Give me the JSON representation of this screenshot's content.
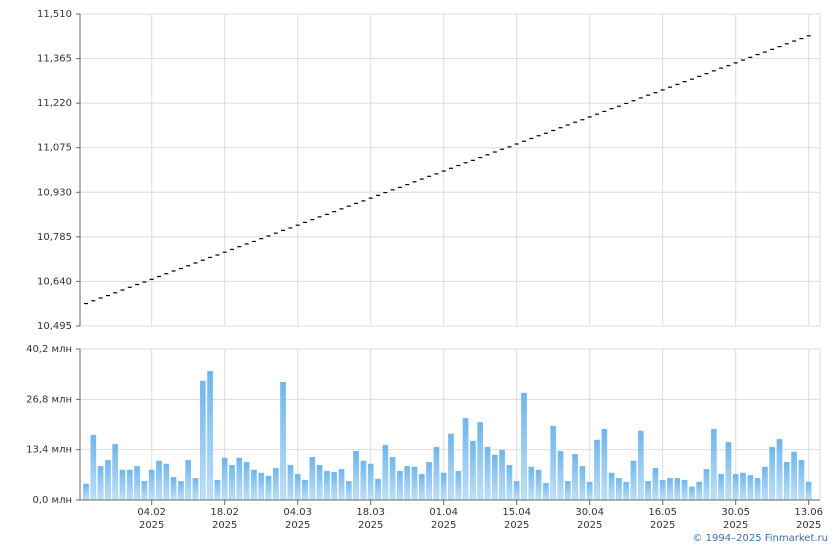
{
  "chart_data": [
    {
      "type": "candlestick",
      "color": "#000000",
      "values": [
        10568,
        10577,
        10586,
        10594,
        10603,
        10612,
        10621,
        10630,
        10638,
        10647,
        10656,
        10665,
        10674,
        10682,
        10691,
        10700,
        10709,
        10718,
        10726,
        10735,
        10744,
        10753,
        10762,
        10770,
        10779,
        10788,
        10797,
        10806,
        10814,
        10823,
        10832,
        10841,
        10850,
        10858,
        10867,
        10876,
        10885,
        10894,
        10902,
        10911,
        10920,
        10929,
        10938,
        10946,
        10955,
        10964,
        10973,
        10982,
        10990,
        10999,
        11008,
        11017,
        11026,
        11034,
        11043,
        11052,
        11061,
        11070,
        11078,
        11087,
        11096,
        11105,
        11114,
        11122,
        11131,
        11140,
        11149,
        11158,
        11166,
        11175,
        11184,
        11193,
        11202,
        11210,
        11219,
        11228,
        11237,
        11246,
        11254,
        11263,
        11272,
        11281,
        11290,
        11298,
        11307,
        11316,
        11325,
        11334,
        11342,
        11351,
        11360,
        11369,
        11378,
        11386,
        11395,
        11404,
        11413,
        11422,
        11430,
        11439
      ],
      "ylim": [
        10495,
        11510
      ],
      "yticks": [
        {
          "value": 10495,
          "label": "10,495"
        },
        {
          "value": 10640,
          "label": "10,640"
        },
        {
          "value": 10785,
          "label": "10,785"
        },
        {
          "value": 10930,
          "label": "10,930"
        },
        {
          "value": 11075,
          "label": "11,075"
        },
        {
          "value": 11220,
          "label": "11,220"
        },
        {
          "value": 11365,
          "label": "11,365"
        },
        {
          "value": 11510,
          "label": "11,510"
        }
      ],
      "grid": true
    },
    {
      "type": "bar",
      "color": "#7cbdee",
      "categories": [
        null,
        null,
        null,
        null,
        null,
        null,
        null,
        null,
        null,
        "04.02\n2025",
        null,
        null,
        null,
        null,
        null,
        null,
        null,
        null,
        null,
        "18.02\n2025",
        null,
        null,
        null,
        null,
        null,
        null,
        null,
        null,
        null,
        "04.03\n2025",
        null,
        null,
        null,
        null,
        null,
        null,
        null,
        null,
        null,
        "18.03\n2025",
        null,
        null,
        null,
        null,
        null,
        null,
        null,
        null,
        null,
        "01.04\n2025",
        null,
        null,
        null,
        null,
        null,
        null,
        null,
        null,
        null,
        "15.04\n2025",
        null,
        null,
        null,
        null,
        null,
        null,
        null,
        null,
        null,
        "30.04\n2025",
        null,
        null,
        null,
        null,
        null,
        null,
        null,
        null,
        null,
        "16.05\n2025",
        null,
        null,
        null,
        null,
        null,
        null,
        null,
        null,
        null,
        "30.05\n2025",
        null,
        null,
        null,
        null,
        null,
        null,
        null,
        null,
        null,
        "13.06\n2025"
      ],
      "values": [
        4.3,
        17.3,
        9,
        10.6,
        14.9,
        8,
        8,
        9,
        5,
        8,
        10.4,
        9.6,
        6.1,
        5,
        10.6,
        5.8,
        31.7,
        34.3,
        5.3,
        11.2,
        9.3,
        11.2,
        10.1,
        8,
        7.2,
        6.4,
        8.5,
        31.4,
        9.3,
        6.9,
        5.3,
        11.4,
        9.3,
        7.7,
        7.4,
        8.2,
        5,
        13,
        10.4,
        9.6,
        5.6,
        14.6,
        11.4,
        7.7,
        9,
        8.8,
        6.9,
        10.1,
        14.1,
        7.2,
        17.6,
        7.7,
        21.8,
        15.7,
        20.7,
        14.1,
        12,
        13.3,
        9.3,
        5,
        28.5,
        8.8,
        8,
        4.5,
        19.7,
        13,
        5,
        12.2,
        9,
        4.8,
        16,
        18.9,
        7.2,
        5.8,
        4.8,
        10.4,
        18.4,
        5,
        8.5,
        5.3,
        5.8,
        5.8,
        5.3,
        3.5,
        4.8,
        8.2,
        18.9,
        6.9,
        15.4,
        6.9,
        7.2,
        6.6,
        5.8,
        8.8,
        14.1,
        16.2,
        10.1,
        12.8,
        10.6,
        4.8
      ],
      "ylim": [
        0,
        40.2
      ],
      "yticks": [
        {
          "value": 0,
          "label": "0,0 млн"
        },
        {
          "value": 13.4,
          "label": "13,4 млн"
        },
        {
          "value": 26.8,
          "label": "26,8 млн"
        },
        {
          "value": 40.2,
          "label": "40,2 млн"
        }
      ],
      "grid": true
    }
  ],
  "footer": "© 1994–2025 Finmarket.ru"
}
